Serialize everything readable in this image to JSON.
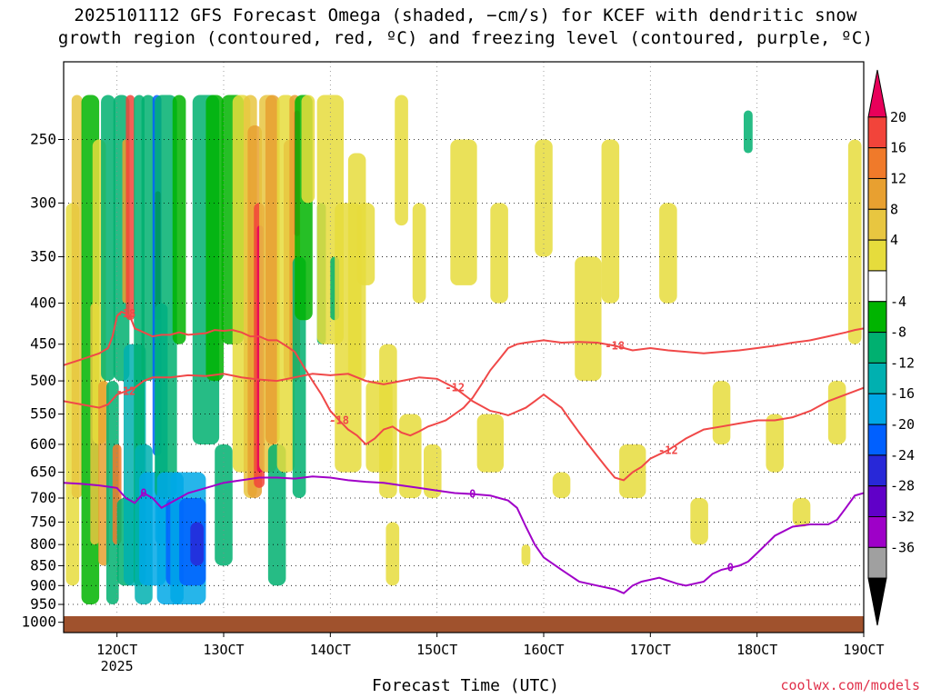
{
  "title": {
    "line1": "2025101112 GFS Forecast Omega (shaded, −cm/s) for KCEF with dendritic snow",
    "line2": "growth region (contoured, red, ºC) and freezing level (contoured, purple, ºC)"
  },
  "xlabel": "Forecast Time (UTC)",
  "credit": "coolwx.com/models",
  "chart_data": {
    "type": "heatmap",
    "y_axis": {
      "label": "",
      "scale": "log",
      "ticks": [
        250,
        300,
        350,
        400,
        450,
        500,
        550,
        600,
        650,
        700,
        750,
        800,
        850,
        900,
        950,
        1000
      ],
      "range": [
        200,
        1030
      ]
    },
    "x_axis": {
      "ticks": [
        "12OCT",
        "13OCT",
        "14OCT",
        "15OCT",
        "16OCT",
        "17OCT",
        "18OCT",
        "19OCT"
      ],
      "tick_hours": [
        24,
        48,
        72,
        96,
        120,
        144,
        168,
        192
      ],
      "sublabel": "2025",
      "range_hours": [
        12,
        192
      ]
    },
    "colorbar": {
      "levels": [
        20,
        16,
        12,
        8,
        4,
        -4,
        -8,
        -12,
        -16,
        -20,
        -24,
        -28,
        -32,
        -36
      ],
      "colors": [
        "#e8005a",
        "#f2443a",
        "#f07a2a",
        "#e8a030",
        "#e8c640",
        "#e6dc3c",
        "#ffffff",
        "#00b400",
        "#00b070",
        "#00b0b0",
        "#00a8e6",
        "#0060ff",
        "#2828d8",
        "#6000c8",
        "#9e00c8",
        "#a0a0a0",
        "#000000"
      ]
    },
    "contours": {
      "dendritic_red": [
        {
          "label": "-18",
          "color": "#f04848",
          "points": [
            [
              12,
              478
            ],
            [
              16,
              470
            ],
            [
              20,
              462
            ],
            [
              22,
              455
            ],
            [
              23,
              440
            ],
            [
              24,
              415
            ],
            [
              25,
              410
            ],
            [
              26,
              412
            ],
            [
              27,
              416
            ],
            [
              28,
              430
            ],
            [
              30,
              435
            ],
            [
              32,
              440
            ],
            [
              34,
              438
            ],
            [
              36,
              438
            ],
            [
              38,
              435
            ],
            [
              40,
              438
            ],
            [
              42,
              437
            ],
            [
              44,
              436
            ],
            [
              46,
              432
            ],
            [
              48,
              433
            ],
            [
              50,
              432
            ],
            [
              52,
              435
            ],
            [
              54,
              440
            ],
            [
              56,
              440
            ],
            [
              58,
              445
            ],
            [
              60,
              445
            ],
            [
              62,
              452
            ],
            [
              64,
              460
            ],
            [
              66,
              480
            ],
            [
              68,
              500
            ],
            [
              70,
              520
            ],
            [
              72,
              545
            ],
            [
              74,
              560
            ],
            [
              76,
              575
            ],
            [
              78,
              585
            ],
            [
              80,
              600
            ],
            [
              82,
              590
            ],
            [
              84,
              575
            ],
            [
              86,
              570
            ],
            [
              88,
              580
            ],
            [
              90,
              585
            ],
            [
              92,
              578
            ],
            [
              94,
              570
            ],
            [
              96,
              565
            ],
            [
              98,
              560
            ],
            [
              100,
              550
            ],
            [
              102,
              540
            ],
            [
              104,
              525
            ],
            [
              106,
              505
            ],
            [
              108,
              485
            ],
            [
              110,
              470
            ],
            [
              112,
              455
            ],
            [
              114,
              450
            ],
            [
              116,
              448
            ],
            [
              120,
              445
            ],
            [
              124,
              448
            ],
            [
              128,
              447
            ],
            [
              132,
              448
            ],
            [
              136,
              452
            ],
            [
              140,
              458
            ],
            [
              144,
              455
            ],
            [
              148,
              458
            ],
            [
              152,
              460
            ],
            [
              156,
              462
            ],
            [
              160,
              460
            ],
            [
              164,
              458
            ],
            [
              168,
              455
            ],
            [
              172,
              452
            ],
            [
              176,
              448
            ],
            [
              180,
              445
            ],
            [
              184,
              440
            ],
            [
              188,
              435
            ],
            [
              190,
              432
            ],
            [
              192,
              430
            ]
          ]
        },
        {
          "label": "-12",
          "color": "#f04848",
          "points": [
            [
              12,
              530
            ],
            [
              16,
              535
            ],
            [
              20,
              540
            ],
            [
              22,
              535
            ],
            [
              24,
              520
            ],
            [
              26,
              515
            ],
            [
              28,
              510
            ],
            [
              30,
              500
            ],
            [
              32,
              495
            ],
            [
              36,
              495
            ],
            [
              40,
              492
            ],
            [
              44,
              493
            ],
            [
              48,
              490
            ],
            [
              52,
              495
            ],
            [
              56,
              498
            ],
            [
              60,
              500
            ],
            [
              64,
              495
            ],
            [
              68,
              490
            ],
            [
              72,
              492
            ],
            [
              76,
              490
            ],
            [
              80,
              500
            ],
            [
              84,
              505
            ],
            [
              88,
              500
            ],
            [
              92,
              495
            ],
            [
              96,
              497
            ],
            [
              100,
              510
            ],
            [
              104,
              530
            ],
            [
              108,
              545
            ],
            [
              110,
              548
            ],
            [
              112,
              552
            ],
            [
              116,
              540
            ],
            [
              118,
              530
            ],
            [
              120,
              520
            ],
            [
              122,
              530
            ],
            [
              124,
              540
            ],
            [
              126,
              560
            ],
            [
              128,
              580
            ],
            [
              130,
              600
            ],
            [
              132,
              620
            ],
            [
              134,
              640
            ],
            [
              136,
              660
            ],
            [
              138,
              665
            ],
            [
              140,
              650
            ],
            [
              142,
              640
            ],
            [
              144,
              625
            ],
            [
              148,
              610
            ],
            [
              150,
              600
            ],
            [
              152,
              590
            ],
            [
              156,
              575
            ],
            [
              160,
              570
            ],
            [
              164,
              565
            ],
            [
              168,
              560
            ],
            [
              172,
              560
            ],
            [
              176,
              555
            ],
            [
              180,
              545
            ],
            [
              184,
              530
            ],
            [
              188,
              520
            ],
            [
              192,
              510
            ]
          ]
        }
      ],
      "freezing_purple": [
        {
          "label": "0",
          "color": "#a000c8",
          "points": [
            [
              12,
              670
            ],
            [
              16,
              672
            ],
            [
              20,
              675
            ],
            [
              24,
              680
            ],
            [
              26,
              700
            ],
            [
              28,
              710
            ],
            [
              30,
              690
            ],
            [
              32,
              700
            ],
            [
              34,
              720
            ],
            [
              36,
              710
            ],
            [
              38,
              700
            ],
            [
              40,
              690
            ],
            [
              44,
              680
            ],
            [
              48,
              670
            ],
            [
              52,
              665
            ],
            [
              56,
              660
            ],
            [
              60,
              660
            ],
            [
              64,
              662
            ],
            [
              68,
              658
            ],
            [
              72,
              660
            ],
            [
              76,
              665
            ],
            [
              80,
              668
            ],
            [
              84,
              670
            ],
            [
              88,
              675
            ],
            [
              92,
              680
            ],
            [
              96,
              685
            ],
            [
              100,
              690
            ],
            [
              104,
              692
            ],
            [
              108,
              695
            ],
            [
              110,
              700
            ],
            [
              112,
              705
            ],
            [
              114,
              720
            ],
            [
              116,
              760
            ],
            [
              118,
              800
            ],
            [
              120,
              830
            ],
            [
              124,
              860
            ],
            [
              128,
              890
            ],
            [
              132,
              900
            ],
            [
              136,
              910
            ],
            [
              138,
              920
            ],
            [
              140,
              900
            ],
            [
              142,
              890
            ],
            [
              146,
              880
            ],
            [
              150,
              895
            ],
            [
              152,
              900
            ],
            [
              156,
              890
            ],
            [
              158,
              870
            ],
            [
              160,
              860
            ],
            [
              162,
              855
            ],
            [
              164,
              850
            ],
            [
              166,
              840
            ],
            [
              168,
              820
            ],
            [
              170,
              800
            ],
            [
              172,
              780
            ],
            [
              176,
              760
            ],
            [
              180,
              755
            ],
            [
              184,
              755
            ],
            [
              186,
              745
            ],
            [
              188,
              720
            ],
            [
              190,
              695
            ],
            [
              192,
              690
            ]
          ]
        }
      ]
    },
    "ground_band_color": "#a0522d"
  }
}
